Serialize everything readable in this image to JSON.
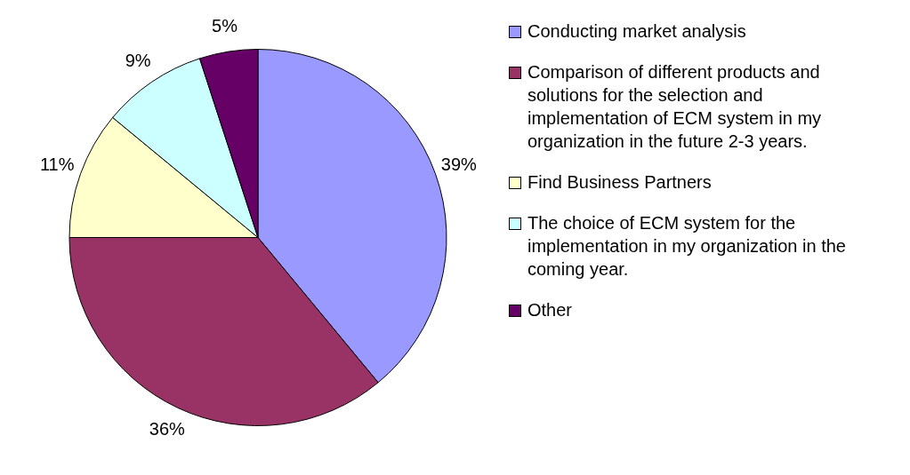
{
  "chart_data": {
    "type": "pie",
    "categories": [
      "Conducting market analysis",
      "Comparison of different products and solutions for the selection and implementation of ECM system in my organization in the future 2-3 years.",
      "Find Business Partners",
      "The choice of ECM system for the implementation in my organization in the coming year.",
      "Other"
    ],
    "values": [
      39,
      36,
      11,
      9,
      5
    ],
    "value_labels": [
      "39%",
      "36%",
      "11%",
      "9%",
      "5%"
    ],
    "colors": [
      "#9999ff",
      "#993366",
      "#ffffcc",
      "#ccffff",
      "#660066"
    ],
    "legend": "right"
  }
}
